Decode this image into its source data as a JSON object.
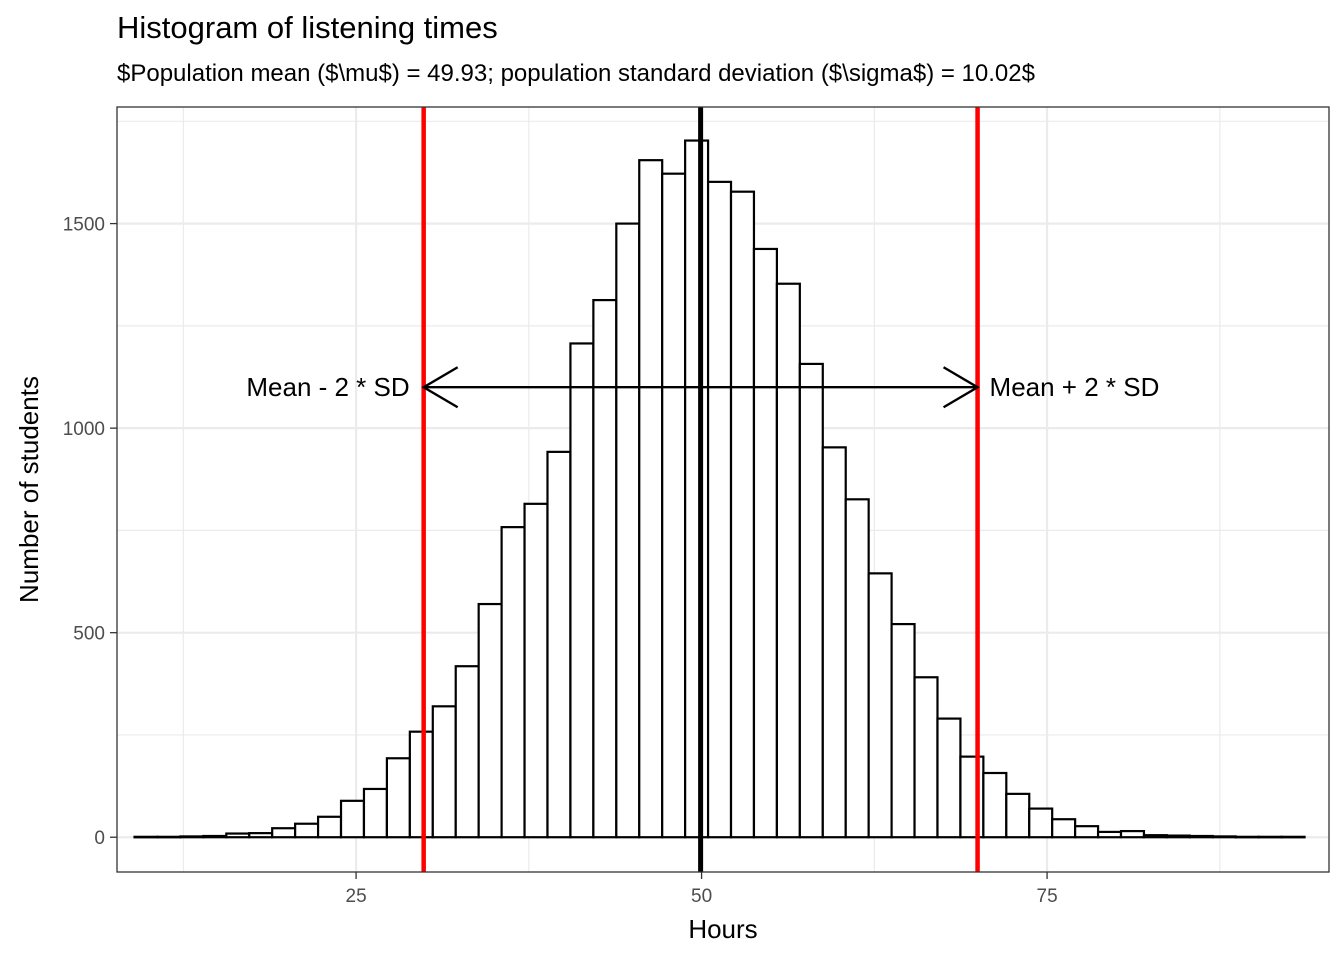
{
  "chart_data": {
    "type": "bar",
    "title": "Histogram of listening times",
    "subtitle": "$Population mean ($\\mu$) = 49.93; population standard deviation ($\\sigma$) = 10.02$",
    "xlabel": "Hours",
    "ylabel": "Number of students",
    "xlim": [
      7.7,
      95.4
    ],
    "ylim": [
      -85,
      1785
    ],
    "x_ticks": [
      25,
      50,
      75
    ],
    "y_ticks": [
      0,
      500,
      1000,
      1500
    ],
    "grid": true,
    "bin_width": 1.66,
    "bin_centers": [
      9.8,
      11.46,
      13.12,
      14.78,
      16.44,
      18.1,
      19.76,
      21.42,
      23.08,
      24.74,
      26.4,
      28.06,
      29.72,
      31.38,
      33.04,
      34.7,
      36.36,
      38.02,
      39.68,
      41.34,
      43.0,
      44.66,
      46.32,
      47.98,
      49.64,
      51.3,
      52.96,
      54.62,
      56.28,
      57.94,
      59.6,
      61.26,
      62.92,
      64.58,
      66.24,
      67.9,
      69.56,
      71.22,
      72.88,
      74.54,
      76.2,
      77.86,
      79.52,
      81.18,
      82.84,
      84.5,
      86.16,
      87.82,
      89.48,
      91.14,
      92.8
    ],
    "values": [
      1,
      1,
      2,
      3,
      9,
      10,
      22,
      33,
      50,
      89,
      118,
      193,
      258,
      320,
      418,
      570,
      758,
      815,
      942,
      1207,
      1313,
      1500,
      1655,
      1622,
      1703,
      1602,
      1578,
      1438,
      1353,
      1157,
      953,
      826,
      645,
      521,
      391,
      290,
      197,
      157,
      106,
      70,
      44,
      27,
      13,
      15,
      5,
      4,
      3,
      2,
      1,
      1,
      1
    ],
    "vertical_lines": [
      {
        "x": 49.93,
        "color": "#000000"
      },
      {
        "x": 29.89,
        "color": "#ff0000"
      },
      {
        "x": 69.97,
        "color": "#ff0000"
      }
    ],
    "arrow": {
      "x_start": 29.89,
      "x_end": 69.97,
      "y": 1100,
      "double_headed": true
    },
    "annotations": [
      {
        "text": "Mean - 2 * SD",
        "x": 29.89,
        "y": 1100,
        "align": "right"
      },
      {
        "text": "Mean + 2 * SD",
        "x": 69.97,
        "y": 1100,
        "align": "left"
      }
    ]
  }
}
